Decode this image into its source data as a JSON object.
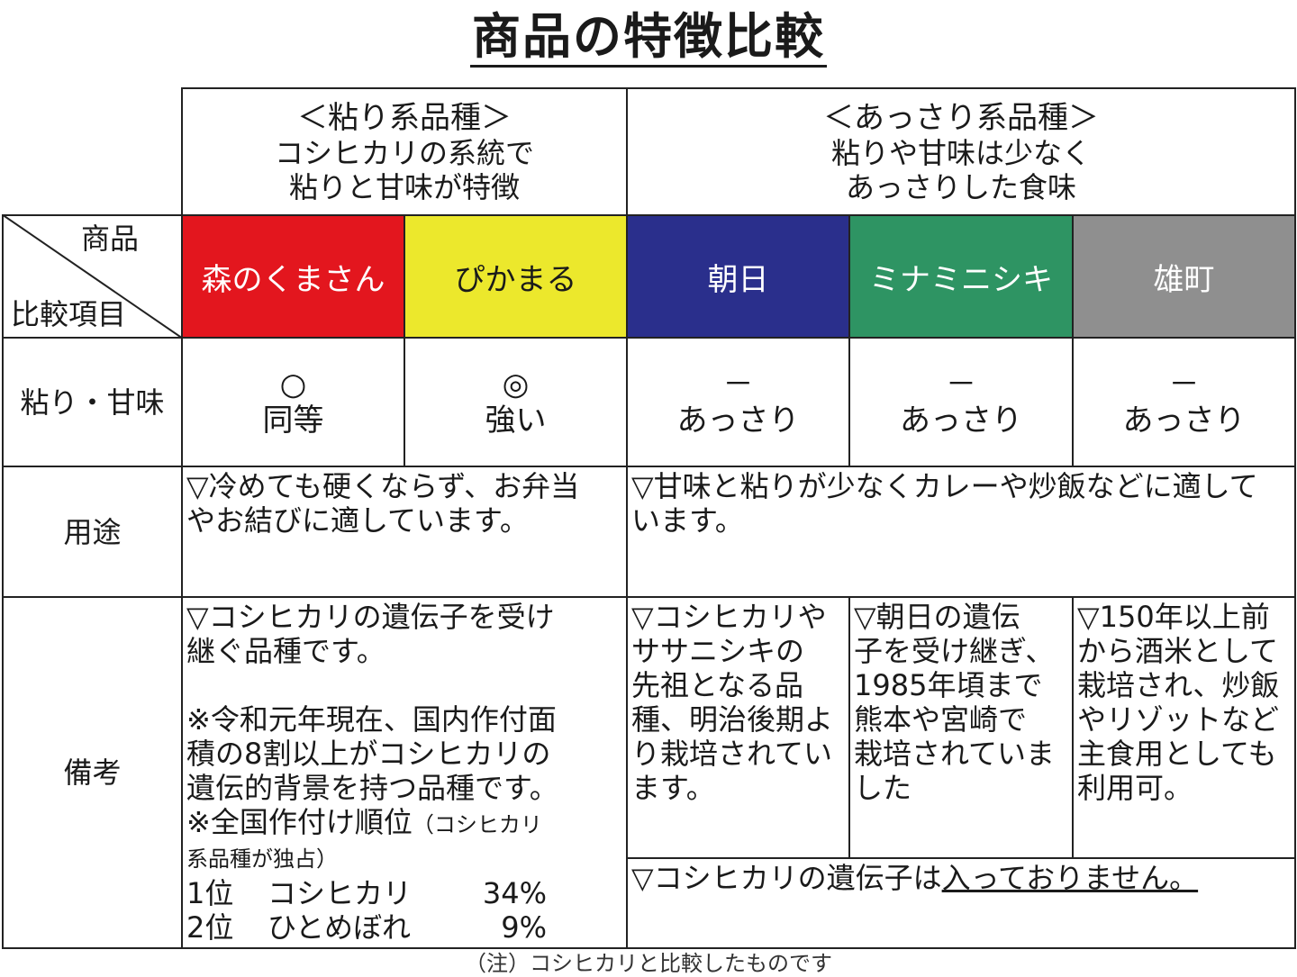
{
  "title": "商品の特徴比較",
  "groups": {
    "sticky": {
      "name": "＜粘り系品種＞",
      "desc": [
        "コシヒカリの系統で",
        "粘りと甘味が特徴"
      ]
    },
    "light": {
      "name": "＜あっさり系品種＞",
      "desc": [
        "粘りや甘味は少なく",
        "あっさりした食味"
      ]
    }
  },
  "corner": {
    "top": "商品",
    "bottom": "比較項目"
  },
  "row_labels": {
    "taste": "粘り・甘味",
    "use": "用途",
    "notes": "備考"
  },
  "varieties": [
    {
      "name": "森のくまさん",
      "color": "#e3161e",
      "text_color": "#ffffff",
      "mark": "○",
      "taste": "同等"
    },
    {
      "name": "ぴかまる",
      "color": "#ece82c",
      "text_color": "#1a1a1a",
      "mark": "◎",
      "taste": "強い"
    },
    {
      "name": "朝日",
      "color": "#2a2f8c",
      "text_color": "#ffffff",
      "mark": "－",
      "taste": "あっさり"
    },
    {
      "name": "ミナミニシキ",
      "color": "#2e9463",
      "text_color": "#ffffff",
      "mark": "－",
      "taste": "あっさり"
    },
    {
      "name": "雄町",
      "color": "#8f8f8f",
      "text_color": "#ffffff",
      "mark": "－",
      "taste": "あっさり"
    }
  ],
  "use": {
    "sticky": [
      "▽冷めても硬くならず、お弁当",
      "やお結びに適しています。"
    ],
    "light": [
      "▽甘味と粘りが少なくカレーや炒飯などに適して",
      "います。"
    ]
  },
  "notes": {
    "sticky": {
      "lines": [
        "▽コシヒカリの遺伝子を受け",
        "継ぐ品種です。",
        "",
        "※令和元年現在、国内作付面",
        "積の8割以上がコシヒカリの",
        "遺伝的背景を持つ品種です。"
      ],
      "rank_heading": "※全国作付け順位",
      "rank_sub_1": "（コシヒカリ",
      "rank_sub_2": "系品種が独占）",
      "ranks": [
        {
          "rank": "1位",
          "name": "コシヒカリ",
          "share": "34%"
        },
        {
          "rank": "2位",
          "name": "ひとめぼれ",
          "share": "9%"
        }
      ]
    },
    "asahi": [
      "▽コシヒカリや",
      "ササニシキの",
      "先祖となる品",
      "種、明治後期よ",
      "り栽培されてい",
      "ます。"
    ],
    "minaminishiki": [
      "▽朝日の遺伝",
      "子を受け継ぎ、",
      "1985年頃まで",
      "熊本や宮崎で",
      "栽培されていま",
      "した"
    ],
    "omachi": [
      "▽150年以上前",
      "から酒米として",
      "栽培され、炒飯",
      "やリゾットなど",
      "主食用としても",
      "利用可。"
    ],
    "light_common_prefix": "▽コシヒカリの遺伝子は",
    "light_common_emph": "入っておりません。"
  },
  "footnote": "（注）コシヒカリと比較したものです"
}
